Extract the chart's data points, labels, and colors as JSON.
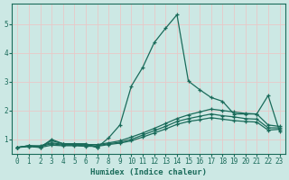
{
  "xlabel": "Humidex (Indice chaleur)",
  "bg_color": "#cce8e4",
  "grid_color": "#e8c8c8",
  "line_color": "#1a6b5a",
  "xlim": [
    -0.5,
    23.5
  ],
  "ylim": [
    0.5,
    5.7
  ],
  "yticks": [
    1,
    2,
    3,
    4,
    5
  ],
  "xticks": [
    0,
    1,
    2,
    3,
    4,
    5,
    6,
    7,
    8,
    9,
    10,
    11,
    12,
    13,
    14,
    15,
    16,
    17,
    18,
    19,
    20,
    21,
    22,
    23
  ],
  "series": [
    {
      "x": [
        0,
        1,
        2,
        3,
        4,
        5,
        6,
        7
      ],
      "y": [
        0.72,
        0.78,
        0.72,
        1.0,
        0.85,
        0.85,
        0.85,
        0.72
      ]
    },
    {
      "x": [
        0,
        1,
        2,
        3,
        4,
        5,
        6,
        7,
        8,
        9,
        10,
        11,
        12,
        13,
        14,
        15,
        16,
        17,
        18,
        19,
        20,
        21,
        22,
        23
      ],
      "y": [
        0.72,
        0.78,
        0.78,
        0.88,
        0.83,
        0.83,
        0.82,
        0.82,
        0.88,
        0.95,
        1.08,
        1.22,
        1.38,
        1.55,
        1.72,
        1.85,
        1.95,
        2.05,
        2.0,
        1.95,
        1.9,
        1.88,
        1.5,
        1.45
      ]
    },
    {
      "x": [
        0,
        1,
        2,
        3,
        4,
        5,
        6,
        7,
        8,
        9,
        10,
        11,
        12,
        13,
        14,
        15,
        16,
        17,
        18,
        19,
        20,
        21,
        22,
        23
      ],
      "y": [
        0.72,
        0.76,
        0.75,
        0.85,
        0.8,
        0.8,
        0.78,
        0.78,
        0.85,
        0.9,
        1.0,
        1.15,
        1.3,
        1.45,
        1.62,
        1.72,
        1.8,
        1.88,
        1.82,
        1.78,
        1.72,
        1.7,
        1.4,
        1.4
      ]
    },
    {
      "x": [
        0,
        1,
        2,
        3,
        4,
        5,
        6,
        7,
        8,
        9,
        10,
        11,
        12,
        13,
        14,
        15,
        16,
        17,
        18,
        19,
        20,
        21,
        22,
        23
      ],
      "y": [
        0.72,
        0.75,
        0.72,
        0.8,
        0.78,
        0.78,
        0.76,
        0.76,
        0.82,
        0.87,
        0.95,
        1.08,
        1.22,
        1.36,
        1.52,
        1.62,
        1.68,
        1.75,
        1.7,
        1.65,
        1.62,
        1.6,
        1.32,
        1.35
      ]
    },
    {
      "x": [
        0,
        1,
        2,
        3,
        4,
        5,
        6,
        7,
        8,
        9,
        10,
        11,
        12,
        13,
        14,
        15,
        16,
        17,
        18,
        19,
        20,
        21,
        22,
        23
      ],
      "y": [
        0.72,
        0.78,
        0.75,
        0.95,
        0.85,
        0.82,
        0.82,
        0.72,
        1.05,
        1.5,
        2.85,
        3.5,
        4.35,
        4.85,
        5.32,
        3.02,
        2.72,
        2.45,
        2.32,
        1.88,
        1.88,
        1.88,
        2.52,
        1.28
      ]
    }
  ]
}
